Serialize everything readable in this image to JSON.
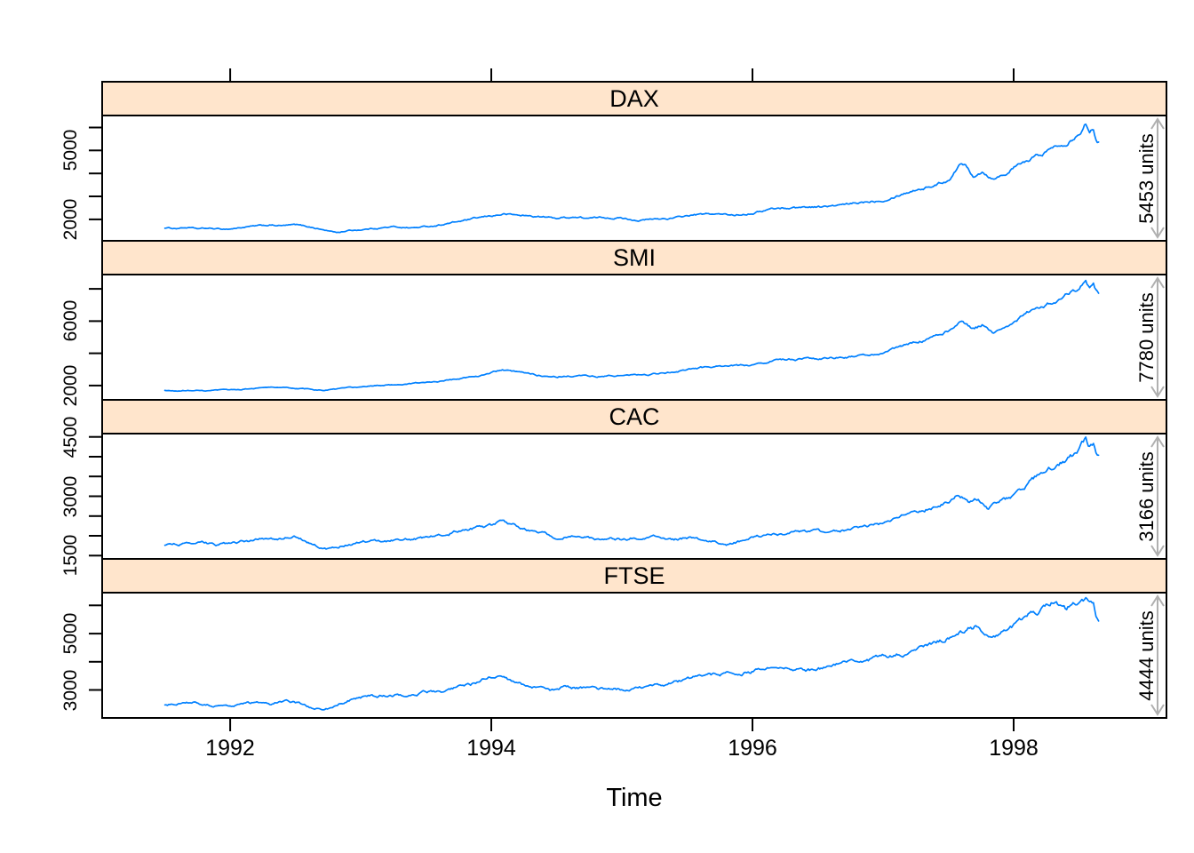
{
  "chart_data": {
    "type": "line",
    "xlabel": "Time",
    "x_tick_labels": [
      "1992",
      "1994",
      "1996",
      "1998"
    ],
    "x_tick_values": [
      1992,
      1994,
      1996,
      1998
    ],
    "x_axis_range": [
      1991.02,
      1999.17
    ],
    "x_data_range": [
      1991.5,
      1998.65
    ],
    "line_color": "#0080FF",
    "strip_fill": "#FFE5CC",
    "border_color": "#000000",
    "arrow_color": "#B0B0B0",
    "grid": "off",
    "layout": "4 stacked panels, free y scales, shared x axis",
    "panels": [
      {
        "title": "DAX",
        "units_label": "5453 units",
        "y_axis_range": [
          1067,
          6521
        ],
        "y_ticks": [
          2000,
          3000,
          4000,
          5000,
          6000
        ],
        "y_labeled_ticks": [
          2000,
          5000
        ],
        "keypoints": [
          [
            1991.5,
            1628
          ],
          [
            1991.58,
            1610
          ],
          [
            1991.67,
            1645
          ],
          [
            1991.75,
            1585
          ],
          [
            1991.83,
            1605
          ],
          [
            1991.92,
            1575
          ],
          [
            1992.0,
            1585
          ],
          [
            1992.1,
            1655
          ],
          [
            1992.2,
            1705
          ],
          [
            1992.3,
            1745
          ],
          [
            1992.4,
            1720
          ],
          [
            1992.5,
            1760
          ],
          [
            1992.6,
            1685
          ],
          [
            1992.7,
            1560
          ],
          [
            1992.78,
            1465
          ],
          [
            1992.83,
            1430
          ],
          [
            1992.9,
            1510
          ],
          [
            1993.0,
            1550
          ],
          [
            1993.1,
            1605
          ],
          [
            1993.25,
            1675
          ],
          [
            1993.4,
            1630
          ],
          [
            1993.55,
            1710
          ],
          [
            1993.7,
            1855
          ],
          [
            1993.85,
            2005
          ],
          [
            1994.0,
            2150
          ],
          [
            1994.1,
            2230
          ],
          [
            1994.22,
            2175
          ],
          [
            1994.35,
            2120
          ],
          [
            1994.5,
            2055
          ],
          [
            1994.62,
            2105
          ],
          [
            1994.75,
            2045
          ],
          [
            1994.88,
            2080
          ],
          [
            1995.0,
            2060
          ],
          [
            1995.13,
            1955
          ],
          [
            1995.25,
            2005
          ],
          [
            1995.4,
            2055
          ],
          [
            1995.55,
            2195
          ],
          [
            1995.7,
            2230
          ],
          [
            1995.85,
            2185
          ],
          [
            1996.0,
            2285
          ],
          [
            1996.15,
            2465
          ],
          [
            1996.3,
            2505
          ],
          [
            1996.45,
            2550
          ],
          [
            1996.6,
            2565
          ],
          [
            1996.75,
            2655
          ],
          [
            1996.9,
            2795
          ],
          [
            1997.0,
            2855
          ],
          [
            1997.12,
            3080
          ],
          [
            1997.25,
            3300
          ],
          [
            1997.38,
            3460
          ],
          [
            1997.5,
            3720
          ],
          [
            1997.58,
            4350
          ],
          [
            1997.63,
            4380
          ],
          [
            1997.69,
            3920
          ],
          [
            1997.76,
            4110
          ],
          [
            1997.83,
            3810
          ],
          [
            1997.92,
            3950
          ],
          [
            1998.0,
            4250
          ],
          [
            1998.1,
            4510
          ],
          [
            1998.2,
            4810
          ],
          [
            1998.3,
            5110
          ],
          [
            1998.4,
            5360
          ],
          [
            1998.46,
            5620
          ],
          [
            1998.52,
            5950
          ],
          [
            1998.55,
            6170
          ],
          [
            1998.58,
            5880
          ],
          [
            1998.61,
            5980
          ],
          [
            1998.63,
            5600
          ],
          [
            1998.65,
            5455
          ]
        ]
      },
      {
        "title": "SMI",
        "units_label": "7780 units",
        "y_axis_range": [
          1110,
          8890
        ],
        "y_ticks": [
          2000,
          4000,
          6000,
          8000
        ],
        "y_labeled_ticks": [
          2000,
          6000
        ],
        "keypoints": [
          [
            1991.5,
            1678
          ],
          [
            1991.6,
            1650
          ],
          [
            1991.7,
            1690
          ],
          [
            1991.8,
            1655
          ],
          [
            1991.9,
            1685
          ],
          [
            1992.0,
            1725
          ],
          [
            1992.15,
            1805
          ],
          [
            1992.3,
            1875
          ],
          [
            1992.45,
            1850
          ],
          [
            1992.6,
            1755
          ],
          [
            1992.7,
            1705
          ],
          [
            1992.8,
            1755
          ],
          [
            1992.9,
            1850
          ],
          [
            1993.0,
            1905
          ],
          [
            1993.15,
            2005
          ],
          [
            1993.3,
            2085
          ],
          [
            1993.45,
            2155
          ],
          [
            1993.6,
            2270
          ],
          [
            1993.75,
            2405
          ],
          [
            1993.9,
            2605
          ],
          [
            1994.0,
            2805
          ],
          [
            1994.08,
            2955
          ],
          [
            1994.2,
            2805
          ],
          [
            1994.35,
            2655
          ],
          [
            1994.5,
            2555
          ],
          [
            1994.65,
            2605
          ],
          [
            1994.8,
            2555
          ],
          [
            1994.95,
            2605
          ],
          [
            1995.1,
            2655
          ],
          [
            1995.25,
            2705
          ],
          [
            1995.4,
            2855
          ],
          [
            1995.55,
            3055
          ],
          [
            1995.7,
            3155
          ],
          [
            1995.85,
            3205
          ],
          [
            1996.0,
            3305
          ],
          [
            1996.15,
            3555
          ],
          [
            1996.3,
            3605
          ],
          [
            1996.45,
            3655
          ],
          [
            1996.6,
            3705
          ],
          [
            1996.75,
            3805
          ],
          [
            1996.9,
            3905
          ],
          [
            1997.0,
            4005
          ],
          [
            1997.12,
            4355
          ],
          [
            1997.25,
            4705
          ],
          [
            1997.38,
            4955
          ],
          [
            1997.5,
            5405
          ],
          [
            1997.6,
            5905
          ],
          [
            1997.68,
            5505
          ],
          [
            1997.76,
            5755
          ],
          [
            1997.84,
            5305
          ],
          [
            1997.93,
            5655
          ],
          [
            1998.0,
            6005
          ],
          [
            1998.1,
            6505
          ],
          [
            1998.2,
            6905
          ],
          [
            1998.3,
            7205
          ],
          [
            1998.4,
            7605
          ],
          [
            1998.5,
            8005
          ],
          [
            1998.55,
            8400
          ],
          [
            1998.58,
            8080
          ],
          [
            1998.61,
            8230
          ],
          [
            1998.63,
            7850
          ],
          [
            1998.65,
            7720
          ]
        ]
      },
      {
        "title": "CAC",
        "units_label": "3166 units",
        "y_axis_range": [
          1417,
          4583
        ],
        "y_ticks": [
          1500,
          2000,
          2500,
          3000,
          3500,
          4000,
          4500
        ],
        "y_labeled_ticks": [
          1500,
          3000,
          4500
        ],
        "keypoints": [
          [
            1991.5,
            1773
          ],
          [
            1991.6,
            1800
          ],
          [
            1991.7,
            1780
          ],
          [
            1991.8,
            1820
          ],
          [
            1991.9,
            1765
          ],
          [
            1992.0,
            1800
          ],
          [
            1992.1,
            1860
          ],
          [
            1992.2,
            1900
          ],
          [
            1992.3,
            1960
          ],
          [
            1992.4,
            1925
          ],
          [
            1992.5,
            1980
          ],
          [
            1992.6,
            1830
          ],
          [
            1992.7,
            1705
          ],
          [
            1992.76,
            1655
          ],
          [
            1992.82,
            1705
          ],
          [
            1992.9,
            1800
          ],
          [
            1993.0,
            1840
          ],
          [
            1993.1,
            1900
          ],
          [
            1993.2,
            1870
          ],
          [
            1993.3,
            1940
          ],
          [
            1993.4,
            1895
          ],
          [
            1993.5,
            1950
          ],
          [
            1993.6,
            2050
          ],
          [
            1993.7,
            2100
          ],
          [
            1993.8,
            2150
          ],
          [
            1993.9,
            2200
          ],
          [
            1994.0,
            2250
          ],
          [
            1994.08,
            2360
          ],
          [
            1994.2,
            2250
          ],
          [
            1994.3,
            2150
          ],
          [
            1994.4,
            2050
          ],
          [
            1994.5,
            1955
          ],
          [
            1994.6,
            2000
          ],
          [
            1994.7,
            1950
          ],
          [
            1994.8,
            1900
          ],
          [
            1994.9,
            1950
          ],
          [
            1995.0,
            1905
          ],
          [
            1995.1,
            1950
          ],
          [
            1995.2,
            2000
          ],
          [
            1995.3,
            1950
          ],
          [
            1995.4,
            1905
          ],
          [
            1995.5,
            1950
          ],
          [
            1995.6,
            1900
          ],
          [
            1995.7,
            1850
          ],
          [
            1995.8,
            1785
          ],
          [
            1995.9,
            1850
          ],
          [
            1996.0,
            1950
          ],
          [
            1996.1,
            2000
          ],
          [
            1996.2,
            2050
          ],
          [
            1996.3,
            2100
          ],
          [
            1996.4,
            2080
          ],
          [
            1996.5,
            2105
          ],
          [
            1996.6,
            2085
          ],
          [
            1996.7,
            2150
          ],
          [
            1996.8,
            2200
          ],
          [
            1996.9,
            2280
          ],
          [
            1997.0,
            2305
          ],
          [
            1997.12,
            2430
          ],
          [
            1997.25,
            2600
          ],
          [
            1997.38,
            2720
          ],
          [
            1997.5,
            2905
          ],
          [
            1997.58,
            3050
          ],
          [
            1997.66,
            2855
          ],
          [
            1997.73,
            2950
          ],
          [
            1997.8,
            2705
          ],
          [
            1997.9,
            2855
          ],
          [
            1998.0,
            3005
          ],
          [
            1998.1,
            3255
          ],
          [
            1998.2,
            3555
          ],
          [
            1998.3,
            3755
          ],
          [
            1998.4,
            3905
          ],
          [
            1998.5,
            4105
          ],
          [
            1998.55,
            4385
          ],
          [
            1998.58,
            4200
          ],
          [
            1998.61,
            4280
          ],
          [
            1998.63,
            4050
          ],
          [
            1998.65,
            3960
          ]
        ]
      },
      {
        "title": "FTSE",
        "units_label": "4444 units",
        "y_axis_range": [
          2008,
          6452
        ],
        "y_ticks": [
          3000,
          4000,
          5000,
          6000
        ],
        "y_labeled_ticks": [
          3000,
          5000
        ],
        "keypoints": [
          [
            1991.5,
            2444
          ],
          [
            1991.6,
            2560
          ],
          [
            1991.7,
            2580
          ],
          [
            1991.8,
            2520
          ],
          [
            1991.9,
            2425
          ],
          [
            1992.0,
            2450
          ],
          [
            1992.1,
            2500
          ],
          [
            1992.2,
            2550
          ],
          [
            1992.3,
            2455
          ],
          [
            1992.4,
            2600
          ],
          [
            1992.5,
            2550
          ],
          [
            1992.6,
            2405
          ],
          [
            1992.7,
            2300
          ],
          [
            1992.78,
            2355
          ],
          [
            1992.85,
            2550
          ],
          [
            1992.95,
            2700
          ],
          [
            1993.05,
            2750
          ],
          [
            1993.15,
            2800
          ],
          [
            1993.25,
            2850
          ],
          [
            1993.35,
            2805
          ],
          [
            1993.45,
            2900
          ],
          [
            1993.55,
            2950
          ],
          [
            1993.65,
            3000
          ],
          [
            1993.75,
            3100
          ],
          [
            1993.85,
            3200
          ],
          [
            1993.95,
            3400
          ],
          [
            1994.05,
            3480
          ],
          [
            1994.15,
            3255
          ],
          [
            1994.25,
            3150
          ],
          [
            1994.35,
            3105
          ],
          [
            1994.45,
            2955
          ],
          [
            1994.55,
            3100
          ],
          [
            1994.65,
            3055
          ],
          [
            1994.75,
            3050
          ],
          [
            1994.85,
            3005
          ],
          [
            1994.95,
            3050
          ],
          [
            1995.05,
            3005
          ],
          [
            1995.15,
            3055
          ],
          [
            1995.25,
            3150
          ],
          [
            1995.35,
            3250
          ],
          [
            1995.45,
            3305
          ],
          [
            1995.55,
            3450
          ],
          [
            1995.65,
            3500
          ],
          [
            1995.75,
            3550
          ],
          [
            1995.85,
            3600
          ],
          [
            1995.95,
            3650
          ],
          [
            1996.05,
            3700
          ],
          [
            1996.15,
            3750
          ],
          [
            1996.25,
            3705
          ],
          [
            1996.35,
            3750
          ],
          [
            1996.45,
            3705
          ],
          [
            1996.55,
            3800
          ],
          [
            1996.65,
            3900
          ],
          [
            1996.75,
            4000
          ],
          [
            1996.85,
            4050
          ],
          [
            1996.95,
            4100
          ],
          [
            1997.05,
            4250
          ],
          [
            1997.15,
            4305
          ],
          [
            1997.25,
            4450
          ],
          [
            1997.35,
            4600
          ],
          [
            1997.45,
            4750
          ],
          [
            1997.55,
            4950
          ],
          [
            1997.65,
            5150
          ],
          [
            1997.72,
            5260
          ],
          [
            1997.8,
            4855
          ],
          [
            1997.88,
            4950
          ],
          [
            1997.95,
            5100
          ],
          [
            1998.05,
            5450
          ],
          [
            1998.15,
            5750
          ],
          [
            1998.25,
            5950
          ],
          [
            1998.32,
            6100
          ],
          [
            1998.4,
            5905
          ],
          [
            1998.48,
            6050
          ],
          [
            1998.55,
            6180
          ],
          [
            1998.58,
            6000
          ],
          [
            1998.61,
            6080
          ],
          [
            1998.63,
            5650
          ],
          [
            1998.65,
            5460
          ]
        ]
      }
    ]
  }
}
